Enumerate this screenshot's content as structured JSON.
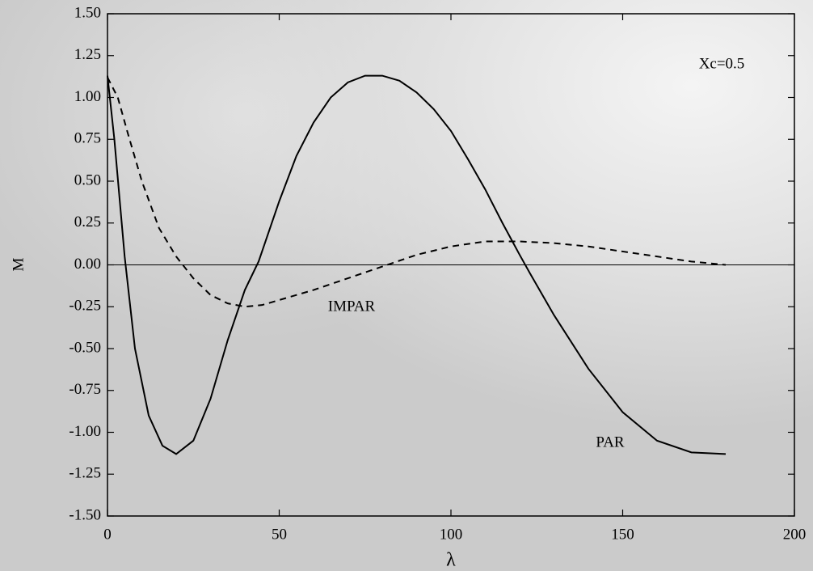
{
  "chart_data": {
    "type": "line",
    "xlabel": "λ",
    "ylabel": "M",
    "annotations": [
      "Xc=0.5",
      "IMPAR",
      "PAR"
    ],
    "xlim": [
      0,
      200
    ],
    "xticks": [
      0,
      50,
      100,
      150,
      200
    ],
    "ylim": [
      -1.5,
      1.5
    ],
    "yticks": [
      {
        "value": -1.5,
        "label": "-1.50"
      },
      {
        "value": -1.25,
        "label": "-1.25"
      },
      {
        "value": -1,
        "label": "-1.00"
      },
      {
        "value": -0.75,
        "label": "-0.75"
      },
      {
        "value": -0.5,
        "label": "-0.50"
      },
      {
        "value": -0.25,
        "label": "-0.25"
      },
      {
        "value": 0,
        "label": "0.00"
      },
      {
        "value": 0.25,
        "label": "0.25"
      },
      {
        "value": 0.5,
        "label": "0.50"
      },
      {
        "value": 0.75,
        "label": "0.75"
      },
      {
        "value": 1,
        "label": "1.00"
      },
      {
        "value": 1.25,
        "label": "1.25"
      },
      {
        "value": 1.5,
        "label": "1.50"
      }
    ],
    "hlines": [
      0
    ],
    "series": [
      {
        "name": "PAR",
        "color": "#000000",
        "dash": false,
        "x": [
          0,
          2,
          5,
          8,
          12,
          16,
          20,
          25,
          30,
          35,
          40,
          44,
          50,
          55,
          60,
          65,
          70,
          75,
          80,
          85,
          90,
          95,
          100,
          105,
          110,
          115,
          120,
          123,
          130,
          140,
          150,
          160,
          170,
          180
        ],
        "values": [
          1.13,
          0.75,
          0.05,
          -0.5,
          -0.9,
          -1.08,
          -1.13,
          -1.05,
          -0.8,
          -0.45,
          -0.15,
          0.02,
          0.38,
          0.65,
          0.85,
          1.0,
          1.09,
          1.13,
          1.13,
          1.1,
          1.03,
          0.93,
          0.8,
          0.63,
          0.45,
          0.25,
          0.06,
          -0.05,
          -0.3,
          -0.62,
          -0.88,
          -1.05,
          -1.12,
          -1.13
        ]
      },
      {
        "name": "IMPAR",
        "color": "#000000",
        "dash": true,
        "x": [
          0,
          3,
          6,
          10,
          15,
          20,
          25,
          30,
          35,
          40,
          45,
          50,
          60,
          70,
          80,
          90,
          100,
          110,
          120,
          130,
          140,
          150,
          160,
          170,
          180
        ],
        "values": [
          1.12,
          1.0,
          0.78,
          0.5,
          0.22,
          0.05,
          -0.08,
          -0.18,
          -0.23,
          -0.25,
          -0.24,
          -0.21,
          -0.15,
          -0.08,
          -0.01,
          0.06,
          0.11,
          0.14,
          0.14,
          0.13,
          0.11,
          0.08,
          0.05,
          0.02,
          0.0
        ]
      }
    ]
  }
}
